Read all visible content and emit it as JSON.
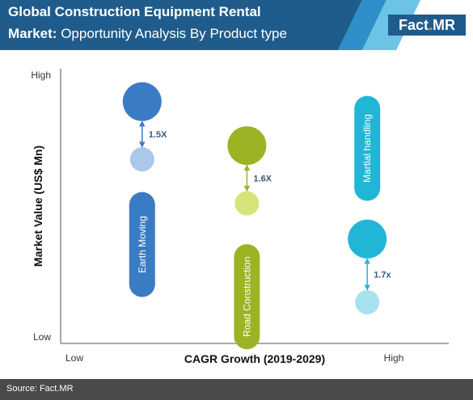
{
  "header": {
    "title_line1": "Global Construction Equipment Rental",
    "title_line2_bold": "Market:",
    "title_line2_rest": "Opportunity Analysis By Product type",
    "brand_part1": "Fact",
    "brand_dot": ".",
    "brand_part2": "MR",
    "colors": {
      "band": "#1f5c8c",
      "accent_light": "#6cc3e6",
      "accent_mid": "#2f8fc9"
    }
  },
  "footer": {
    "source": "Source: Fact.MR"
  },
  "chart_data": {
    "type": "bubble",
    "xlabel": "CAGR Growth (2019-2029)",
    "ylabel": "Market Value (US$ Mn)",
    "x_ticks": [
      "Low",
      "High"
    ],
    "y_ticks": [
      "High",
      "Low"
    ],
    "grid": false,
    "segments": [
      {
        "name": "Earth Moving",
        "color": "#3a7cc4",
        "light_color": "#a9c8ea",
        "multiplier": "1.5X",
        "x": 0.21,
        "value_current": 0.88,
        "value_future": 0.67,
        "label_y": 0.36
      },
      {
        "name": "Road Construction",
        "color": "#9bb425",
        "light_color": "#d6e37a",
        "multiplier": "1.6X",
        "x": 0.48,
        "value_current": 0.72,
        "value_future": 0.51,
        "label_y": 0.17
      },
      {
        "name": "Martial handling",
        "color": "#22b6d6",
        "light_color": "#a8e2f0",
        "multiplier": "1.7x",
        "x": 0.79,
        "value_current": 0.38,
        "value_future": 0.15,
        "label_y": 0.71
      }
    ]
  }
}
